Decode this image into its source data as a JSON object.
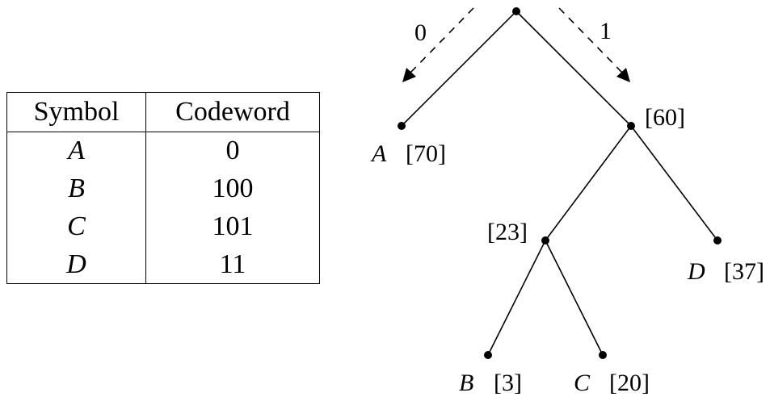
{
  "table": {
    "headers": {
      "symbol": "Symbol",
      "codeword": "Codeword"
    },
    "rows": [
      {
        "symbol": "A",
        "codeword": "0"
      },
      {
        "symbol": "B",
        "codeword": "100"
      },
      {
        "symbol": "C",
        "codeword": "101"
      },
      {
        "symbol": "D",
        "codeword": "11"
      }
    ]
  },
  "tree": {
    "branch_labels": {
      "left": "0",
      "right": "1"
    },
    "nodes": {
      "root": {
        "weight": ""
      },
      "a": {
        "symbol": "A",
        "weight": "[70]"
      },
      "n60": {
        "weight": "[60]"
      },
      "n23": {
        "weight": "[23]"
      },
      "d": {
        "symbol": "D",
        "weight": "[37]"
      },
      "b": {
        "symbol": "B",
        "weight": "[3]"
      },
      "c": {
        "symbol": "C",
        "weight": "[20]"
      }
    }
  }
}
